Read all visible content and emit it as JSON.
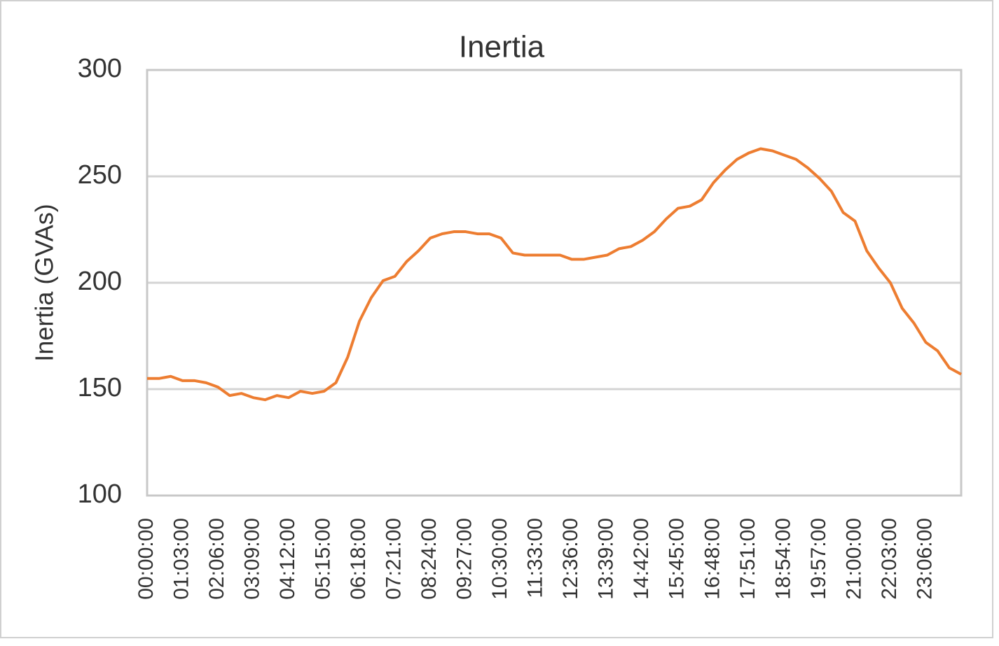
{
  "chart_data": {
    "type": "line",
    "title": "Inertia",
    "y_label": "Inertia (GVAs)",
    "categories": [
      "00:00:00",
      null,
      null,
      "01:03:00",
      null,
      null,
      "02:06:00",
      null,
      null,
      "03:09:00",
      null,
      null,
      "04:12:00",
      null,
      null,
      "05:15:00",
      null,
      null,
      "06:18:00",
      null,
      null,
      "07:21:00",
      null,
      null,
      "08:24:00",
      null,
      null,
      "09:27:00",
      null,
      null,
      "10:30:00",
      null,
      null,
      "11:33:00",
      null,
      null,
      "12:36:00",
      null,
      null,
      "13:39:00",
      null,
      null,
      "14:42:00",
      null,
      null,
      "15:45:00",
      null,
      null,
      "16:48:00",
      null,
      null,
      "17:51:00",
      null,
      null,
      "18:54:00",
      null,
      null,
      "19:57:00",
      null,
      null,
      "21:00:00",
      null,
      null,
      "22:03:00",
      null,
      null,
      "23:06:00",
      null,
      null,
      null
    ],
    "series": [
      {
        "name": "Inertia",
        "color": "#ed7d31",
        "values": [
          155,
          155,
          156,
          154,
          154,
          153,
          151,
          147,
          148,
          146,
          145,
          147,
          146,
          149,
          148,
          149,
          153,
          165,
          182,
          193,
          201,
          203,
          210,
          215,
          221,
          223,
          224,
          224,
          223,
          223,
          221,
          214,
          213,
          213,
          213,
          213,
          211,
          211,
          212,
          213,
          216,
          217,
          220,
          224,
          230,
          235,
          236,
          239,
          247,
          253,
          258,
          261,
          263,
          262,
          260,
          258,
          254,
          249,
          243,
          233,
          229,
          215,
          207,
          200,
          188,
          181,
          172,
          168,
          160,
          157
        ]
      }
    ],
    "ylim": [
      100,
      300
    ],
    "yticks": [
      100,
      150,
      200,
      250,
      300
    ],
    "grid": true
  }
}
